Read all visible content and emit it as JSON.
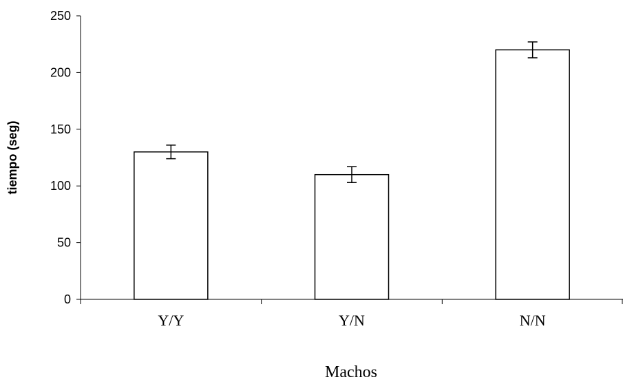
{
  "chart_data": {
    "type": "bar",
    "categories": [
      "Y/Y",
      "Y/N",
      "N/N"
    ],
    "values": [
      130,
      110,
      220
    ],
    "error": [
      6,
      7,
      7
    ],
    "xlabel": "Machos",
    "ylabel": "tiempo (seg)",
    "ylim": [
      0,
      250
    ],
    "yticks": [
      0,
      50,
      100,
      150,
      200,
      250
    ],
    "grid": false,
    "legend": false,
    "colors": {
      "bar_fill": "#ffffff",
      "bar_stroke": "#000000",
      "axis": "#000000"
    }
  }
}
